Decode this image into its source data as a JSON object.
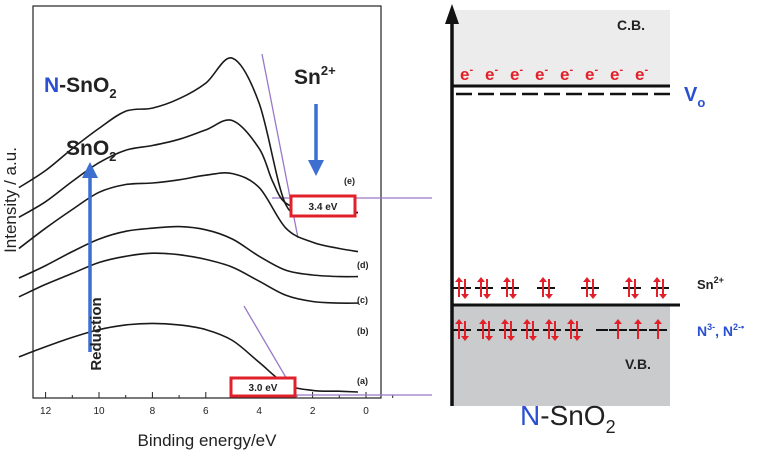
{
  "chart_data": [
    {
      "type": "line",
      "title": "",
      "xlabel": "Binding energy/eV",
      "ylabel": "Intensity / a.u.",
      "xlim": [
        13,
        -1
      ],
      "x_ticks": [
        12,
        10,
        8,
        6,
        4,
        2,
        0
      ],
      "grid": false,
      "series": [
        {
          "name": "(a)",
          "x": [
            13.0,
            12.0,
            11.0,
            10.0,
            9.0,
            8.0,
            7.0,
            6.0,
            5.0,
            4.0,
            3.0,
            2.0,
            1.0,
            0.3
          ],
          "y": [
            0.45,
            0.58,
            0.7,
            0.8,
            0.86,
            0.88,
            0.86,
            0.8,
            0.66,
            0.38,
            0.1,
            0.02,
            0.01,
            0.0
          ]
        },
        {
          "name": "(b)",
          "x": [
            13.0,
            12.0,
            11.0,
            10.0,
            9.0,
            8.0,
            7.0,
            6.0,
            5.0,
            4.0,
            3.0,
            2.0,
            1.0,
            0.3
          ],
          "y": [
            1.22,
            1.38,
            1.52,
            1.66,
            1.74,
            1.78,
            1.76,
            1.7,
            1.6,
            1.42,
            1.24,
            1.16,
            1.14,
            1.14
          ]
        },
        {
          "name": "(c)",
          "x": [
            13.0,
            12.0,
            11.0,
            10.0,
            9.0,
            8.0,
            7.0,
            6.0,
            5.0,
            4.0,
            3.0,
            2.0,
            1.0,
            0.3
          ],
          "y": [
            1.46,
            1.62,
            1.8,
            1.96,
            2.06,
            2.1,
            2.12,
            2.08,
            1.96,
            1.74,
            1.56,
            1.5,
            1.48,
            1.48
          ]
        },
        {
          "name": "(d)",
          "x": [
            13.0,
            12.0,
            11.0,
            10.0,
            9.0,
            8.0,
            7.0,
            6.0,
            5.0,
            4.0,
            3.0,
            2.0,
            1.0,
            0.3
          ],
          "y": [
            1.84,
            2.1,
            2.34,
            2.56,
            2.66,
            2.68,
            2.72,
            2.78,
            2.8,
            2.62,
            2.1,
            1.92,
            1.84,
            1.8
          ]
        },
        {
          "name": "(e)",
          "x": [
            13.0,
            12.0,
            11.0,
            10.0,
            9.0,
            8.0,
            7.0,
            6.0,
            5.0,
            4.0,
            3.5,
            3.0,
            2.0,
            1.0,
            0.3
          ],
          "y": [
            2.24,
            2.44,
            2.7,
            2.94,
            3.1,
            3.16,
            3.24,
            3.36,
            3.48,
            3.12,
            2.7,
            2.42,
            2.32,
            2.3,
            2.3
          ]
        },
        {
          "name": "N-SnO2",
          "x": [
            13.0,
            12.0,
            11.0,
            10.0,
            9.0,
            8.0,
            7.0,
            6.0,
            5.0,
            4.0,
            3.0,
            2.0,
            1.0,
            0.3
          ],
          "y": [
            2.62,
            2.84,
            3.12,
            3.38,
            3.6,
            3.64,
            3.76,
            3.96,
            4.28,
            3.7,
            2.4,
            2.32,
            2.3,
            2.3
          ]
        }
      ],
      "curve_labels": [
        "(a)",
        "(b)",
        "(c)",
        "(d)",
        "(e)"
      ],
      "annotations": {
        "nsno2": {
          "prefix": "N",
          "dash": "-",
          "base": "SnO",
          "sub": "2"
        },
        "sno2": {
          "base": "SnO",
          "sub": "2"
        },
        "sn2": {
          "base": "Sn",
          "sup": "2+"
        },
        "reduction": "Reduction",
        "gap_e": "3.4 eV",
        "gap_a": "3.0 eV"
      },
      "colors": {
        "line": "#1a1a1a",
        "tangent": "#9a78c8",
        "arrow": "#3c6fcf",
        "box": "#e0202a",
        "accent_blue": "#2a4fd0"
      }
    },
    {
      "type": "diagram",
      "title": {
        "prefix": "N",
        "dash": "-",
        "base": "SnO",
        "sub": "2"
      },
      "cb_label": "C.B.",
      "vb_label": "V.B.",
      "vo_label": {
        "base": "V",
        "sub": "o"
      },
      "sn_label": {
        "base": "Sn",
        "sup": "2+"
      },
      "n_label": {
        "a": "N",
        "a_sup": "3-",
        "sep": ", ",
        "b": "N",
        "b_sup": "2-•"
      },
      "electron": {
        "base": "e",
        "sup": "-"
      },
      "electron_count": 8,
      "sn_pairs": 8,
      "n_paired": 6,
      "n_unpaired": 3,
      "colors": {
        "band_fill": "#c9cbcc",
        "cb_fill": "#ececec",
        "electron": "#e3202a",
        "accent_blue": "#2a4fd0"
      }
    }
  ]
}
